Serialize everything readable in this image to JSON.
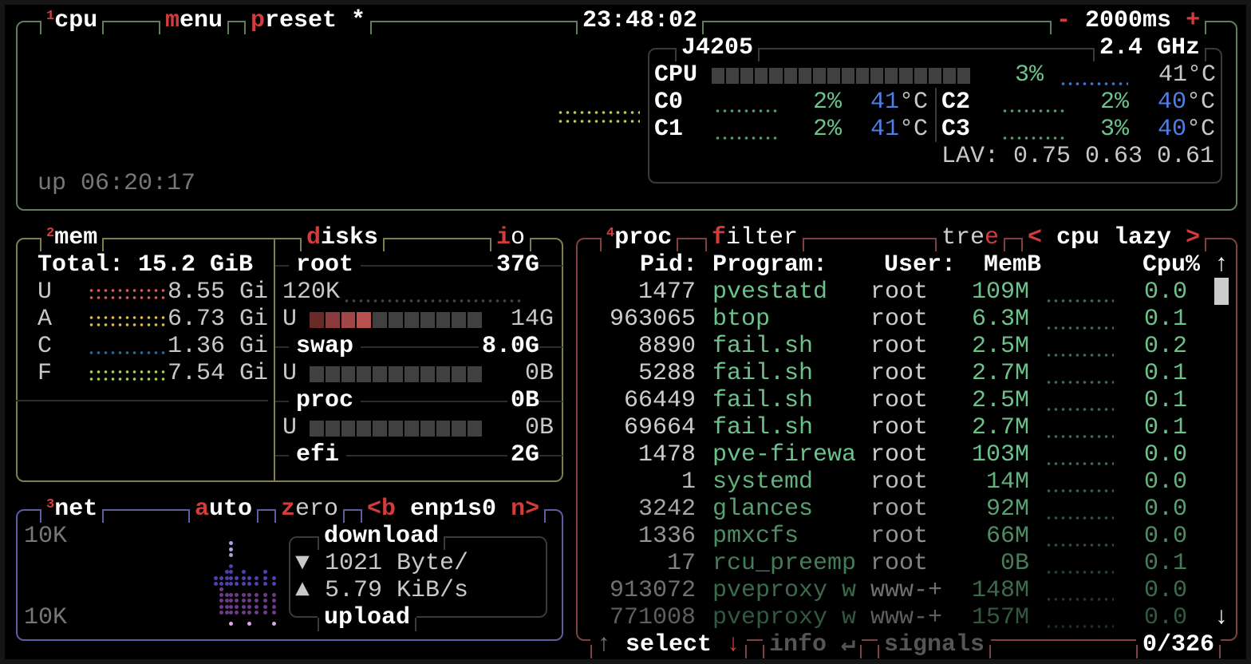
{
  "cpu": {
    "num": "1",
    "title": "cpu",
    "menu_hot": "m",
    "menu_rest": "enu",
    "preset_hot": "p",
    "preset_rest": "reset *",
    "clock": "23:48:02",
    "minus": "-",
    "interval": "2000ms",
    "plus": "+",
    "uptime": "up 06:20:17",
    "model": "J4205",
    "freq": "2.4 GHz",
    "total_label": "CPU",
    "total_pct": "3%",
    "total_pct_value": 3,
    "total_temp": "41°C",
    "cores": [
      {
        "name": "C0",
        "pct": "2%",
        "temp": "41",
        "unit": "°C"
      },
      {
        "name": "C1",
        "pct": "2%",
        "temp": "41",
        "unit": "°C"
      },
      {
        "name": "C2",
        "pct": "2%",
        "temp": "40",
        "unit": "°C"
      },
      {
        "name": "C3",
        "pct": "3%",
        "temp": "40",
        "unit": "°C"
      }
    ],
    "lav": "LAV: 0.75 0.63 0.61"
  },
  "mem": {
    "num": "2",
    "title": "mem",
    "total": "Total: 15.2 GiB",
    "rows": [
      {
        "label": "U",
        "value": "8.55 Gi",
        "color": "#e05a5a"
      },
      {
        "label": "A",
        "value": "6.73 Gi",
        "color": "#e6b84a"
      },
      {
        "label": "C",
        "value": "1.36 Gi",
        "color": "#2a6a9a"
      },
      {
        "label": "F",
        "value": "7.54 Gi",
        "color": "#a6d24a"
      }
    ]
  },
  "disks": {
    "title_hot": "d",
    "title_rest": "isks",
    "io_hot": "i",
    "io_rest": "o",
    "io_value": "120K",
    "items": [
      {
        "name": "root",
        "size": "37G",
        "used_label": "U",
        "used": "14G",
        "used_pct": 38
      },
      {
        "name": "swap",
        "size": "8.0G",
        "used_label": "U",
        "used": "0B",
        "used_pct": 0
      },
      {
        "name": "proc",
        "size": "0B",
        "used_label": "U",
        "used": "0B",
        "used_pct": 0
      },
      {
        "name": "efi",
        "size": "2G"
      }
    ]
  },
  "net": {
    "num": "3",
    "title": "net",
    "auto_hot": "a",
    "auto_rest": "uto",
    "zero_hot": "z",
    "zero_rest": "ero",
    "prev": "<b",
    "iface": "enp1s0",
    "next": "n>",
    "scale_top": "10K",
    "scale_bottom": "10K",
    "download_label": "download",
    "download_arrow": "▼",
    "download": "1021 Byte/",
    "upload_arrow": "▲",
    "upload": "5.79 KiB/s",
    "upload_label": "upload"
  },
  "proc": {
    "num": "4",
    "title": "proc",
    "filter_hot": "f",
    "filter_rest": "ilter",
    "tree_rest": "tre",
    "tree_hot": "e",
    "sort_prev": "<",
    "sort": "cpu lazy",
    "sort_next": ">",
    "headers": {
      "pid": "Pid:",
      "program": "Program:",
      "user": "User:",
      "mem": "MemB",
      "cpu": "Cpu%"
    },
    "scroll_up": "↑",
    "scroll_down": "↓",
    "rows": [
      {
        "pid": "1477",
        "program": "pvestatd",
        "user": "root",
        "mem": "109M",
        "cpu": "0.0"
      },
      {
        "pid": "963065",
        "program": "btop",
        "user": "root",
        "mem": "6.3M",
        "cpu": "0.1"
      },
      {
        "pid": "8890",
        "program": "fail.sh",
        "user": "root",
        "mem": "2.5M",
        "cpu": "0.2"
      },
      {
        "pid": "5288",
        "program": "fail.sh",
        "user": "root",
        "mem": "2.7M",
        "cpu": "0.1"
      },
      {
        "pid": "66449",
        "program": "fail.sh",
        "user": "root",
        "mem": "2.5M",
        "cpu": "0.1"
      },
      {
        "pid": "69664",
        "program": "fail.sh",
        "user": "root",
        "mem": "2.7M",
        "cpu": "0.1"
      },
      {
        "pid": "1478",
        "program": "pve-firewa",
        "user": "root",
        "mem": "103M",
        "cpu": "0.0"
      },
      {
        "pid": "1",
        "program": "systemd",
        "user": "root",
        "mem": "14M",
        "cpu": "0.0"
      },
      {
        "pid": "3242",
        "program": "glances",
        "user": "root",
        "mem": "92M",
        "cpu": "0.0"
      },
      {
        "pid": "1336",
        "program": "pmxcfs",
        "user": "root",
        "mem": "66M",
        "cpu": "0.0"
      },
      {
        "pid": "17",
        "program": "rcu_preemp",
        "user": "root",
        "mem": "0B",
        "cpu": "0.1"
      },
      {
        "pid": "913072",
        "program": "pveproxy w",
        "user": "www-+",
        "mem": "148M",
        "cpu": "0.0"
      },
      {
        "pid": "771008",
        "program": "pveproxy w",
        "user": "www-+",
        "mem": "157M",
        "cpu": "0.0"
      }
    ],
    "footer": {
      "up": "↑",
      "select": "select",
      "down": "↓",
      "info": "info",
      "enter": "↵",
      "signals": "signals",
      "count": "0/326"
    }
  },
  "colors": {
    "cpu_border": "#5f7d5f",
    "mem_border": "#807e4e",
    "net_border": "#5c5ca0",
    "proc_border": "#7e4040",
    "accent": "#d23c3c",
    "value_green": "#6cc28a",
    "temp_blue": "#4f7ee6"
  }
}
